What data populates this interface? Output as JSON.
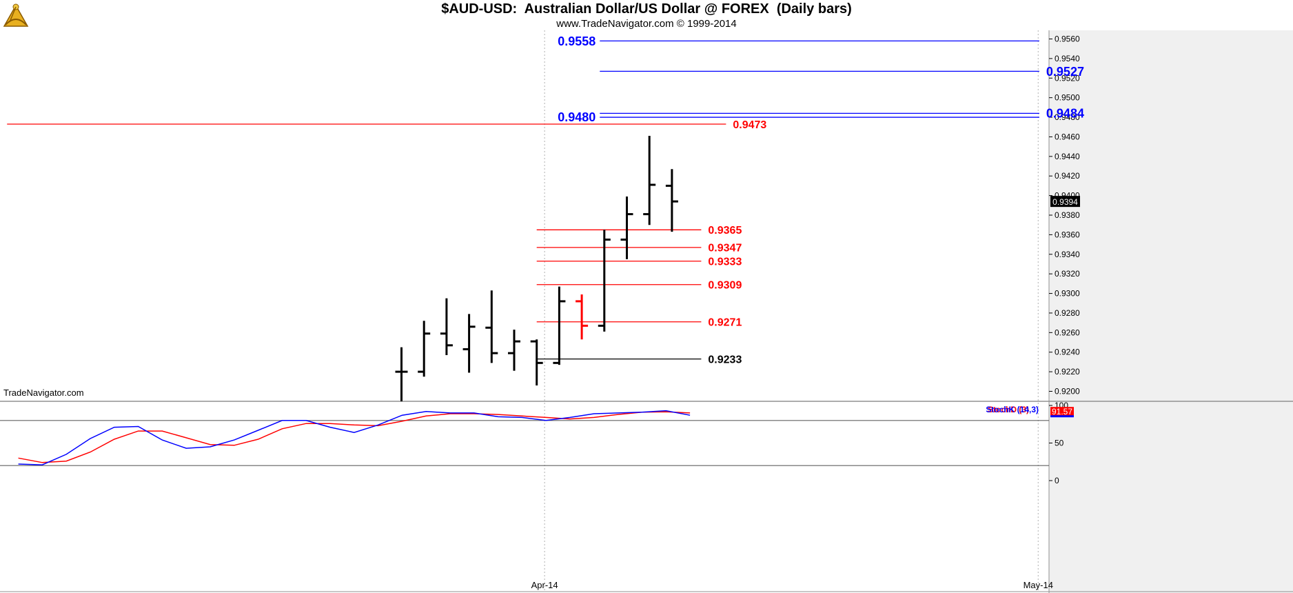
{
  "header": {
    "title": "$AUD-USD:  Australian Dollar/US Dollar @ FOREX  (Daily bars)",
    "subtitle": "www.TradeNavigator.com © 1999-2014",
    "logo_icon": "sextant-logo-icon"
  },
  "watermark": "TradeNavigator.com",
  "colors": {
    "bar": "#000000",
    "blue": "#0000ff",
    "red": "#ff0000",
    "last_price_bg": "#000000"
  },
  "chart_data": [
    {
      "type": "ohlc",
      "title": "$AUD-USD:  Australian Dollar/US Dollar @ FOREX  (Daily bars)",
      "ylim": [
        0.9185,
        0.9575
      ],
      "y_ticks": [
        "0.9560",
        "0.9540",
        "0.9520",
        "0.9500",
        "0.9480",
        "0.9460",
        "0.9440",
        "0.9420",
        "0.9400",
        "0.9380",
        "0.9360",
        "0.9340",
        "0.9320",
        "0.9300",
        "0.9280",
        "0.9260",
        "0.9240",
        "0.9220",
        "0.9200"
      ],
      "x_ticks": [
        {
          "label": "Apr-14",
          "index": 6.35
        },
        {
          "label": "May-14",
          "index": 28.25
        }
      ],
      "last_price": "0.9394",
      "bars": [
        {
          "i": 0,
          "o": 0.922,
          "h": 0.9245,
          "l": 0.9187,
          "c": 0.922
        },
        {
          "i": 1,
          "o": 0.922,
          "h": 0.9272,
          "l": 0.9215,
          "c": 0.9259
        },
        {
          "i": 2,
          "o": 0.9259,
          "h": 0.9295,
          "l": 0.9237,
          "c": 0.9247
        },
        {
          "i": 3,
          "o": 0.9243,
          "h": 0.9279,
          "l": 0.9219,
          "c": 0.9266
        },
        {
          "i": 4,
          "o": 0.9265,
          "h": 0.9303,
          "l": 0.9229,
          "c": 0.9239
        },
        {
          "i": 5,
          "o": 0.9239,
          "h": 0.9263,
          "l": 0.9221,
          "c": 0.9251
        },
        {
          "i": 6,
          "o": 0.9251,
          "h": 0.9253,
          "l": 0.9206,
          "c": 0.9229
        },
        {
          "i": 7,
          "o": 0.9229,
          "h": 0.9307,
          "l": 0.9227,
          "c": 0.9292
        },
        {
          "i": 8,
          "o": 0.9292,
          "h": 0.9299,
          "l": 0.9253,
          "c": 0.9267,
          "color": "red"
        },
        {
          "i": 9,
          "o": 0.9267,
          "h": 0.9365,
          "l": 0.9261,
          "c": 0.9355
        },
        {
          "i": 10,
          "o": 0.9355,
          "h": 0.9399,
          "l": 0.9335,
          "c": 0.9381
        },
        {
          "i": 11,
          "o": 0.9381,
          "h": 0.9461,
          "l": 0.937,
          "c": 0.9411
        },
        {
          "i": 12,
          "o": 0.941,
          "h": 0.9427,
          "l": 0.9363,
          "c": 0.9394
        }
      ],
      "levels": [
        {
          "label": "0.9558",
          "value": 0.9558,
          "color": "blue",
          "x0": 8.8,
          "x1": 28.3,
          "label_side": "left"
        },
        {
          "label": "0.9527",
          "value": 0.9527,
          "color": "blue",
          "x0": 8.8,
          "x1": 28.3,
          "label_side": "right"
        },
        {
          "label": "0.9484",
          "value": 0.9484,
          "color": "blue",
          "x0": 8.8,
          "x1": 28.3,
          "label_side": "right"
        },
        {
          "label": "0.9480",
          "value": 0.948,
          "color": "blue",
          "x0": 8.8,
          "x1": 28.3,
          "label_side": "left"
        },
        {
          "label": "0.9473",
          "value": 0.9473,
          "color": "red",
          "x0": -17.5,
          "x1": 14.4,
          "label_side": "right"
        },
        {
          "label": "0.9365",
          "value": 0.9365,
          "color": "red",
          "x0": 6.0,
          "x1": 13.3,
          "label_side": "right"
        },
        {
          "label": "0.9347",
          "value": 0.9347,
          "color": "red",
          "x0": 6.0,
          "x1": 13.3,
          "label_side": "right"
        },
        {
          "label": "0.9333",
          "value": 0.9333,
          "color": "red",
          "x0": 6.0,
          "x1": 13.3,
          "label_side": "right"
        },
        {
          "label": "0.9309",
          "value": 0.9309,
          "color": "red",
          "x0": 6.0,
          "x1": 13.3,
          "label_side": "right"
        },
        {
          "label": "0.9271",
          "value": 0.9271,
          "color": "red",
          "x0": 6.0,
          "x1": 13.3,
          "label_side": "right"
        },
        {
          "label": "0.9233",
          "value": 0.9233,
          "color": "black",
          "x0": 6.0,
          "x1": 13.3,
          "label_side": "right"
        }
      ]
    },
    {
      "type": "line",
      "ylim": [
        0,
        100
      ],
      "y_ticks": [
        "100",
        "50",
        "0"
      ],
      "levels": [
        80,
        20
      ],
      "last_value": "91.57",
      "x_start": -17,
      "x_end": 12.8,
      "series": [
        {
          "name": "StochD (3)",
          "color": "red",
          "values": [
            30,
            24,
            26,
            38,
            55,
            66,
            66,
            57,
            48,
            47,
            55,
            69,
            76,
            76,
            74,
            73,
            79,
            86,
            89,
            89,
            88,
            86,
            84,
            82,
            84,
            88,
            91,
            91.6,
            90
          ]
        },
        {
          "name": "StochK (14,3)",
          "color": "blue",
          "values": [
            22,
            21,
            35,
            56,
            71,
            72,
            54,
            43,
            45,
            54,
            67,
            80,
            80,
            71,
            64,
            74,
            87,
            92,
            90,
            90,
            85,
            84,
            80,
            84,
            89,
            90,
            91,
            93,
            87
          ]
        }
      ]
    }
  ]
}
